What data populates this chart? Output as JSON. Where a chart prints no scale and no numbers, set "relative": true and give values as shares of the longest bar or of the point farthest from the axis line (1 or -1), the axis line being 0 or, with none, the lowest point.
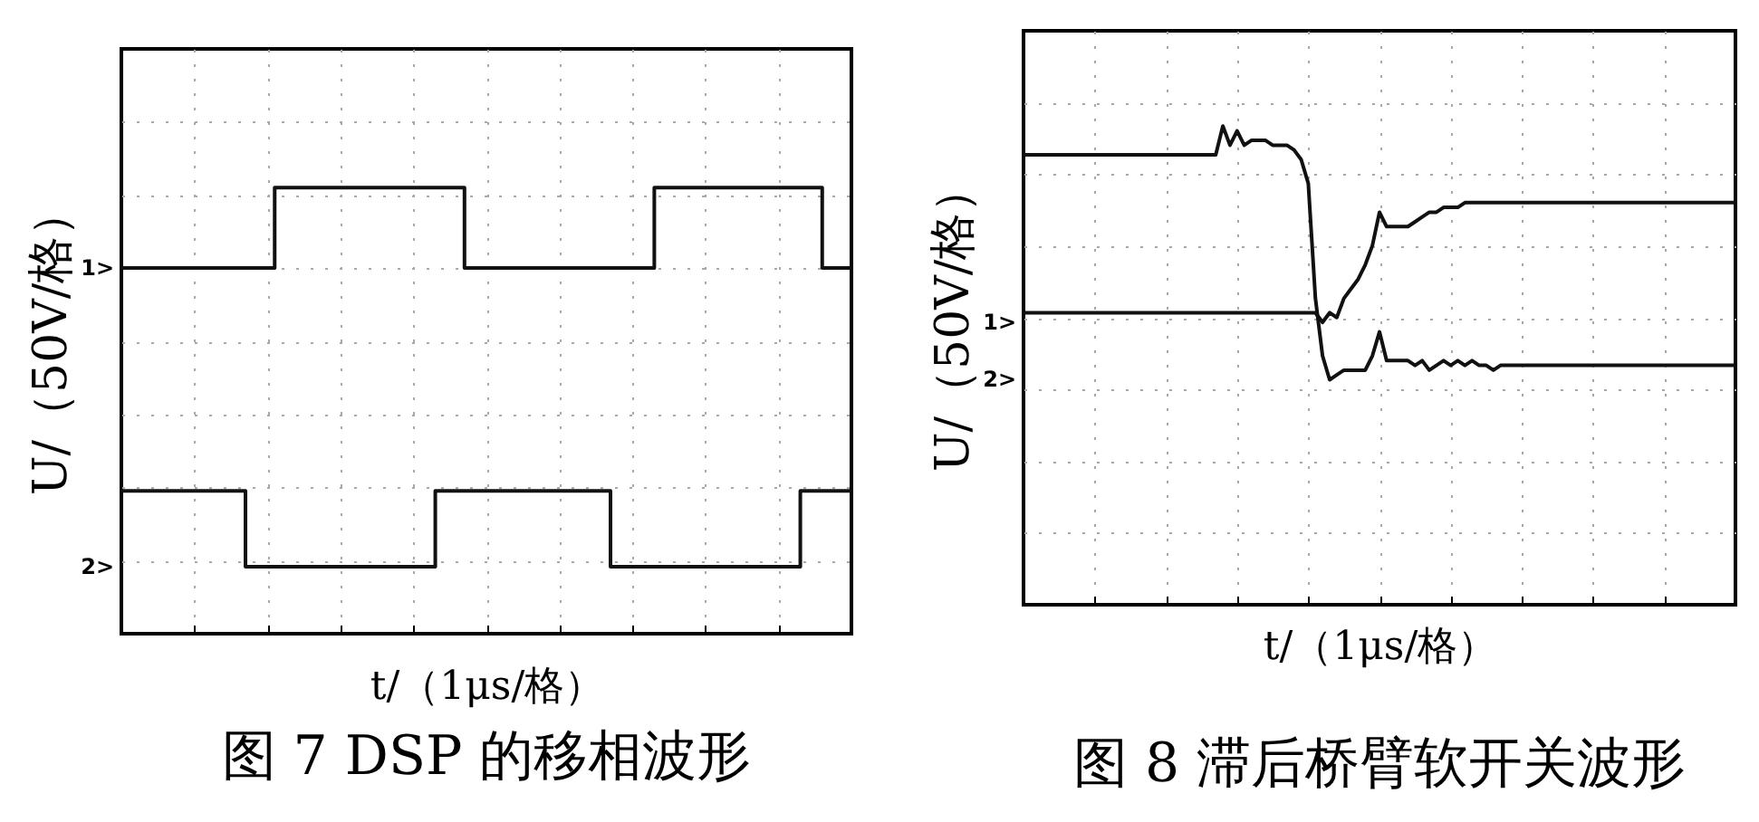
{
  "chart_data": [
    {
      "type": "step",
      "relative": true,
      "title": "图 7 DSP 的移相波形",
      "xlabel": "t/（1μs/格）",
      "ylabel": "U/（50V/格）",
      "grid": true,
      "categories": [
        null,
        null,
        null,
        null,
        null,
        null,
        null,
        null,
        null,
        null,
        null,
        null,
        null,
        null,
        null,
        null,
        null,
        null,
        null,
        null,
        null,
        null,
        null,
        null,
        null,
        null,
        null,
        null,
        null,
        null,
        null,
        null,
        null,
        null,
        null,
        null,
        null,
        null,
        null,
        null,
        null,
        null,
        null,
        null,
        null,
        null,
        null,
        null,
        null,
        null,
        null,
        null,
        null,
        null,
        null,
        null,
        null,
        null,
        null,
        null,
        null,
        null,
        null,
        null,
        null,
        null,
        null,
        null,
        null,
        null,
        null,
        null,
        null,
        null,
        null,
        null,
        null,
        null,
        null,
        null,
        null,
        null,
        null,
        null,
        null,
        null,
        null,
        null,
        null,
        null,
        null,
        null,
        null,
        null,
        null,
        null,
        null,
        null,
        null,
        null,
        null
      ],
      "series": [
        {
          "color": "#111111",
          "values": [
            0.82,
            0.82,
            0.82,
            0.82,
            0.82,
            0.82,
            0.82,
            0.82,
            0.82,
            0.82,
            0.82,
            0.82,
            0.82,
            0.82,
            0.82,
            0.82,
            0.82,
            0.82,
            0.82,
            0.82,
            0.82,
            1,
            1,
            1,
            1,
            1,
            1,
            1,
            1,
            1,
            1,
            1,
            1,
            1,
            1,
            1,
            1,
            1,
            1,
            1,
            1,
            1,
            1,
            1,
            1,
            1,
            1,
            0.82,
            0.82,
            0.82,
            0.82,
            0.82,
            0.82,
            0.82,
            0.82,
            0.82,
            0.82,
            0.82,
            0.82,
            0.82,
            0.82,
            0.82,
            0.82,
            0.82,
            0.82,
            0.82,
            0.82,
            0.82,
            0.82,
            0.82,
            0.82,
            0.82,
            0.82,
            1,
            1,
            1,
            1,
            1,
            1,
            1,
            1,
            1,
            1,
            1,
            1,
            1,
            1,
            1,
            1,
            1,
            1,
            1,
            1,
            1,
            1,
            1,
            0.82,
            0.82,
            0.82,
            0.82,
            0.82
          ]
        },
        {
          "color": "#111111",
          "values": [
            0.32,
            0.32,
            0.32,
            0.32,
            0.32,
            0.32,
            0.32,
            0.32,
            0.32,
            0.32,
            0.32,
            0.32,
            0.32,
            0.32,
            0.32,
            0.32,
            0.32,
            0.15,
            0.15,
            0.15,
            0.15,
            0.15,
            0.15,
            0.15,
            0.15,
            0.15,
            0.15,
            0.15,
            0.15,
            0.15,
            0.15,
            0.15,
            0.15,
            0.15,
            0.15,
            0.15,
            0.15,
            0.15,
            0.15,
            0.15,
            0.15,
            0.15,
            0.15,
            0.32,
            0.32,
            0.32,
            0.32,
            0.32,
            0.32,
            0.32,
            0.32,
            0.32,
            0.32,
            0.32,
            0.32,
            0.32,
            0.32,
            0.32,
            0.32,
            0.32,
            0.32,
            0.32,
            0.32,
            0.32,
            0.32,
            0.32,
            0.32,
            0.15,
            0.15,
            0.15,
            0.15,
            0.15,
            0.15,
            0.15,
            0.15,
            0.15,
            0.15,
            0.15,
            0.15,
            0.15,
            0.15,
            0.15,
            0.15,
            0.15,
            0.15,
            0.15,
            0.15,
            0.15,
            0.15,
            0.15,
            0.15,
            0.15,
            0.15,
            0.32,
            0.32,
            0.32,
            0.32,
            0.32,
            0.32,
            0.32,
            0.32
          ]
        }
      ],
      "annotations": [
        "1>",
        "2>"
      ]
    },
    {
      "type": "line",
      "relative": true,
      "title": "图 8 滞后桥臂软开关波形",
      "xlabel": "t/（1μs/格）",
      "ylabel": "U/（50V/格）",
      "grid": true,
      "categories": [
        null,
        null,
        null,
        null,
        null,
        null,
        null,
        null,
        null,
        null,
        null,
        null,
        null,
        null,
        null,
        null,
        null,
        null,
        null,
        null,
        null,
        null,
        null,
        null,
        null,
        null,
        null,
        null,
        null,
        null,
        null,
        null,
        null,
        null,
        null,
        null,
        null,
        null,
        null,
        null,
        null,
        null,
        null,
        null,
        null,
        null,
        null,
        null,
        null,
        null,
        null,
        null,
        null,
        null,
        null,
        null,
        null,
        null,
        null,
        null,
        null,
        null,
        null,
        null,
        null,
        null,
        null,
        null,
        null,
        null,
        null,
        null,
        null,
        null,
        null,
        null,
        null,
        null,
        null,
        null,
        null,
        null,
        null,
        null,
        null,
        null,
        null,
        null,
        null,
        null,
        null,
        null,
        null,
        null,
        null,
        null,
        null,
        null,
        null,
        null,
        null
      ],
      "series": [
        {
          "color": "#111111",
          "values": [
            0.61,
            0.61,
            0.61,
            0.61,
            0.61,
            0.61,
            0.61,
            0.61,
            0.61,
            0.61,
            0.61,
            0.61,
            0.61,
            0.61,
            0.61,
            0.61,
            0.61,
            0.61,
            0.61,
            0.61,
            0.61,
            0.61,
            0.61,
            0.61,
            0.61,
            0.61,
            0.61,
            0.61,
            0.61,
            0.61,
            0.61,
            0.61,
            0.61,
            0.61,
            0.61,
            0.61,
            0.61,
            0.61,
            0.61,
            0.61,
            0.61,
            0.61,
            0.59,
            0.61,
            0.6,
            0.64,
            0.66,
            0.68,
            0.71,
            0.75,
            0.82,
            0.79,
            0.79,
            0.79,
            0.79,
            0.8,
            0.81,
            0.82,
            0.82,
            0.83,
            0.83,
            0.83,
            0.84,
            0.84,
            0.84,
            0.84,
            0.84,
            0.84,
            0.84,
            0.84,
            0.84,
            0.84,
            0.84,
            0.84,
            0.84,
            0.84,
            0.84,
            0.84,
            0.84,
            0.84,
            0.84,
            0.84,
            0.84,
            0.84,
            0.84,
            0.84,
            0.84,
            0.84,
            0.84,
            0.84,
            0.84,
            0.84,
            0.84,
            0.84,
            0.84,
            0.84,
            0.84,
            0.84,
            0.84,
            0.84,
            0.84
          ]
        },
        {
          "color": "#111111",
          "values": [
            0.94,
            0.94,
            0.94,
            0.94,
            0.94,
            0.94,
            0.94,
            0.94,
            0.94,
            0.94,
            0.94,
            0.94,
            0.94,
            0.94,
            0.94,
            0.94,
            0.94,
            0.94,
            0.94,
            0.94,
            0.94,
            0.94,
            0.94,
            0.94,
            0.94,
            0.94,
            0.94,
            0.94,
            1,
            0.96,
            0.99,
            0.96,
            0.97,
            0.97,
            0.97,
            0.96,
            0.96,
            0.96,
            0.95,
            0.93,
            0.88,
            0.64,
            0.52,
            0.47,
            0.48,
            0.49,
            0.49,
            0.49,
            0.49,
            0.52,
            0.57,
            0.51,
            0.51,
            0.51,
            0.51,
            0.5,
            0.51,
            0.49,
            0.5,
            0.51,
            0.5,
            0.51,
            0.5,
            0.51,
            0.5,
            0.5,
            0.49,
            0.5,
            0.5,
            0.5,
            0.5,
            0.5,
            0.5,
            0.5,
            0.5,
            0.5,
            0.5,
            0.5,
            0.5,
            0.5,
            0.5,
            0.5,
            0.5,
            0.5,
            0.5,
            0.5,
            0.5,
            0.5,
            0.5,
            0.5,
            0.5,
            0.5,
            0.5,
            0.5,
            0.5,
            0.5,
            0.5,
            0.5,
            0.5,
            0.5,
            0.5
          ]
        }
      ],
      "annotations": [
        "1>",
        "2>"
      ]
    }
  ]
}
